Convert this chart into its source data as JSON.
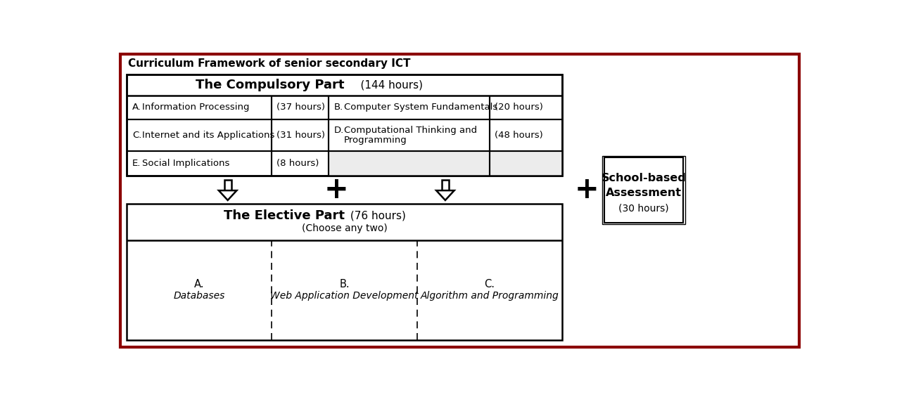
{
  "title": "Curriculum Framework of senior secondary ICT",
  "outer_border_color": "#8B0000",
  "background_color": "#FFFFFF",
  "light_gray": "#ECECEC",
  "compulsory_title": "The Compulsory Part",
  "compulsory_hours": "    (144 hours)",
  "elective_title": "The Elective Part",
  "elective_hours": " (76 hours)",
  "elective_subtitle": "(Choose any two)",
  "school_based_line1": "School-based",
  "school_based_line2": "Assessment",
  "school_based_line3": "(30 hours)",
  "rows": [
    {
      "left_label": "A.",
      "left_text": "Information Processing",
      "left_hours": "(37 hours)",
      "right_label": "B.",
      "right_text": "Computer System Fundamentals",
      "right_hours": "(20 hours)",
      "two_line": false
    },
    {
      "left_label": "C.",
      "left_text": "Internet and its Applications",
      "left_hours": "(31 hours)",
      "right_label": "D.",
      "right_text": "Computational Thinking and",
      "right_text2": "Programming",
      "right_hours": "(48 hours)",
      "two_line": true
    },
    {
      "left_label": "E.",
      "left_text": "Social Implications",
      "left_hours": "(8 hours)",
      "right_label": "",
      "right_text": "",
      "right_hours": "",
      "two_line": false
    }
  ],
  "elective_cols": [
    {
      "label": "A.",
      "text": "Databases"
    },
    {
      "label": "B.",
      "text": "Web Application Development"
    },
    {
      "label": "C.",
      "text": "Algorithm and Programming"
    }
  ]
}
